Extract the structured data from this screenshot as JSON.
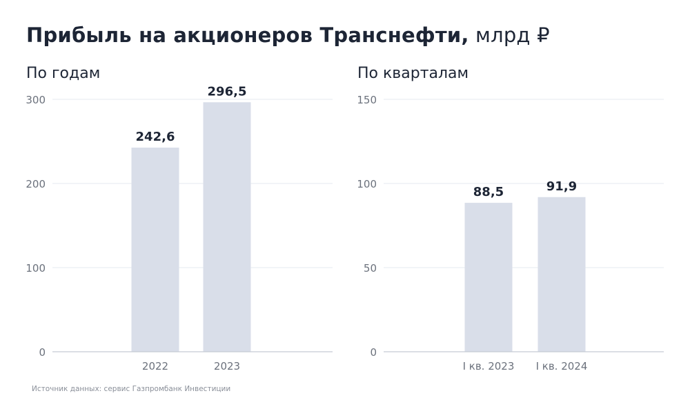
{
  "title": {
    "bold": "Прибыль на акционеров Транснефти,",
    "unit": "млрд ₽"
  },
  "colors": {
    "bar": "#d9dee9",
    "grid": "#e6e9ef",
    "axis": "#c5cad3",
    "tick_text": "#6b717c",
    "value_text": "#1d2535"
  },
  "chart_data": [
    {
      "type": "bar",
      "subtitle": "По годам",
      "categories": [
        "2022",
        "2023"
      ],
      "values": [
        242.6,
        296.5
      ],
      "value_labels": [
        "242,6",
        "296,5"
      ],
      "yticks": [
        0,
        100,
        200,
        300
      ],
      "ylim": [
        0,
        300
      ],
      "grid": true
    },
    {
      "type": "bar",
      "subtitle": "По кварталам",
      "categories": [
        "I кв. 2023",
        "I кв. 2024"
      ],
      "values": [
        88.5,
        91.9
      ],
      "value_labels": [
        "88,5",
        "91,9"
      ],
      "yticks": [
        0,
        50,
        100,
        150
      ],
      "ylim": [
        0,
        150
      ],
      "grid": true
    }
  ],
  "source": "Источник данных: сервис Газпромбанк Инвестиции"
}
